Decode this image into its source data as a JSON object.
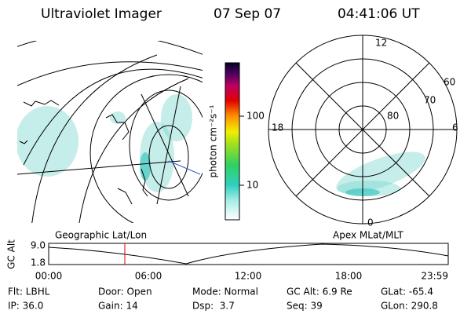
{
  "header": {
    "title": "Ultraviolet Imager",
    "date": "07 Sep 07",
    "time": "04:41:06 UT"
  },
  "colorbar": {
    "label": "photon cm⁻²s⁻¹",
    "ticks": [
      "100",
      "10"
    ]
  },
  "polar": {
    "mlt_labels": [
      "12",
      "18",
      "6",
      "0"
    ],
    "lat_labels": [
      "60",
      "70",
      "80"
    ]
  },
  "altitude": {
    "ylabel": "GC Alt",
    "yticks": [
      "9.0",
      "1.8"
    ],
    "left_title": "Geographic Lat/Lon",
    "right_title": "Apex MLat/MLT",
    "xticks": [
      "00:00",
      "06:00",
      "12:00",
      "18:00",
      "23:59"
    ]
  },
  "footer": {
    "rows": [
      [
        "Flt: LBHL",
        "Door: Open",
        "Mode: Normal",
        "GC Alt: 6.9 Re",
        "GLat: -65.4"
      ],
      [
        "IP: 36.0",
        "Gain: 14",
        "Dsp:  3.7",
        "Seq: 39",
        "GLon: 290.8"
      ]
    ]
  }
}
